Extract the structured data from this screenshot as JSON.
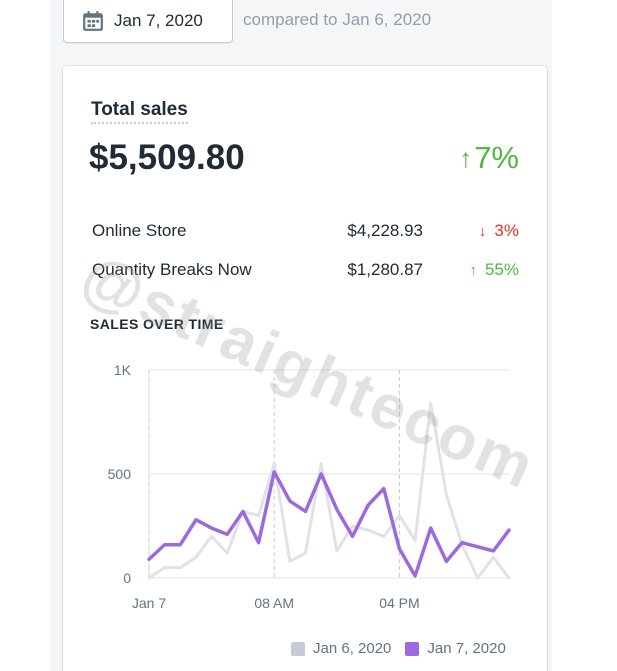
{
  "header": {
    "date_label": "Jan 7, 2020",
    "compare_text": "compared to Jan 6, 2020"
  },
  "summary": {
    "title": "Total sales",
    "value": "$5,509.80",
    "change": "7%",
    "change_direction": "up",
    "rows": [
      {
        "name": "Online Store",
        "amount": "$4,228.93",
        "change": "3%",
        "direction": "down"
      },
      {
        "name": "Quantity Breaks Now",
        "amount": "$1,280.87",
        "change": "55%",
        "direction": "up"
      }
    ]
  },
  "chart_section": {
    "title": "SALES OVER TIME"
  },
  "watermark": "@straightecom",
  "colors": {
    "current": "#9c6ade",
    "previous": "#dfe3e8",
    "up": "#50b83c",
    "down": "#de3618"
  },
  "chart_data": {
    "type": "line",
    "x_ticks": [
      "Jan 7",
      "08 AM",
      "04 PM"
    ],
    "x_tick_hours": [
      0,
      8,
      16
    ],
    "y_ticks": [
      "0",
      "500",
      "1K"
    ],
    "y_tick_values": [
      0,
      500,
      1000
    ],
    "ylim": [
      0,
      1000
    ],
    "xlim": [
      0,
      23
    ],
    "grid": true,
    "legend_position": "bottom-right",
    "series": [
      {
        "name": "Jan 6, 2020",
        "color": "#dfe3e8",
        "values": [
          0,
          50,
          50,
          100,
          200,
          120,
          320,
          300,
          550,
          80,
          120,
          550,
          130,
          250,
          230,
          200,
          300,
          180,
          840,
          400,
          160,
          0,
          100,
          0
        ]
      },
      {
        "name": "Jan 7, 2020",
        "color": "#9c6ade",
        "values": [
          90,
          160,
          160,
          280,
          240,
          210,
          320,
          170,
          510,
          370,
          320,
          500,
          330,
          200,
          350,
          430,
          140,
          10,
          240,
          80,
          170,
          150,
          130,
          230
        ]
      }
    ]
  }
}
